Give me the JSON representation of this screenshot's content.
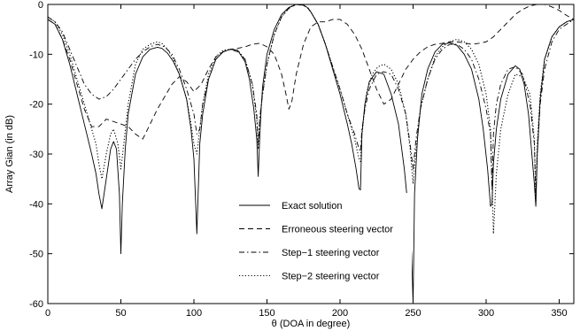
{
  "chart_data": {
    "type": "line",
    "title": "",
    "xlabel": "θ  (DOA in degree)",
    "ylabel": "Array Gian (in dB)",
    "xlim": [
      0,
      360
    ],
    "ylim": [
      -60,
      0
    ],
    "xticks": [
      0,
      50,
      100,
      150,
      200,
      250,
      300,
      350
    ],
    "yticks": [
      0,
      -10,
      -20,
      -30,
      -40,
      -50,
      -60
    ],
    "grid": false,
    "legend_position": "lower-center",
    "series": [
      {
        "name": "Exact solution",
        "style": "solid",
        "x": [
          0,
          5,
          10,
          15,
          20,
          25,
          30,
          33,
          35,
          37,
          40,
          43,
          45,
          47,
          49,
          50,
          51,
          53,
          55,
          60,
          65,
          70,
          75,
          78,
          82,
          86,
          90,
          95,
          98,
          100,
          102,
          104,
          106,
          110,
          115,
          120,
          125,
          130,
          135,
          138,
          141,
          143,
          144,
          145,
          146,
          147,
          150,
          155,
          160,
          165,
          170,
          175,
          178,
          180,
          185,
          190,
          195,
          200,
          205,
          208,
          211,
          213,
          214,
          215,
          217,
          220,
          225,
          230,
          235,
          240,
          244,
          247,
          249,
          250,
          251,
          253,
          256,
          260,
          265,
          270,
          275,
          280,
          285,
          290,
          295,
          298,
          301,
          303,
          304,
          305,
          307,
          310,
          315,
          320,
          323,
          326,
          329,
          331,
          333,
          334,
          335,
          337,
          340,
          345,
          350,
          355,
          360
        ],
        "y": [
          -3,
          -4,
          -7,
          -12,
          -18,
          -24,
          -30,
          -34,
          -38,
          -41,
          -35,
          -29,
          -27.5,
          -29,
          -38,
          -50,
          -40,
          -29,
          -22,
          -14,
          -10.5,
          -9,
          -8.6,
          -8.8,
          -9.8,
          -11.5,
          -14,
          -19,
          -25,
          -31,
          -46,
          -28,
          -22,
          -15,
          -11,
          -9.5,
          -9,
          -9.2,
          -11.5,
          -15,
          -21,
          -27,
          -34.5,
          -27,
          -21,
          -16.5,
          -10,
          -5,
          -2,
          -0.6,
          0,
          -0.1,
          -0.7,
          -1.5,
          -4,
          -8,
          -13,
          -18,
          -24,
          -28,
          -33,
          -37,
          -37.2,
          -26,
          -20,
          -15.5,
          -13.5,
          -14,
          -18,
          -24,
          -33,
          -42,
          -50,
          -60,
          -38,
          -27,
          -18,
          -13,
          -9.5,
          -8,
          -7.7,
          -8.2,
          -10,
          -13,
          -19,
          -25,
          -33,
          -40.5,
          -40,
          -32,
          -25,
          -19,
          -14,
          -12.3,
          -13,
          -16,
          -22,
          -29,
          -36,
          -40.5,
          -30,
          -19,
          -11,
          -6.5,
          -4.5,
          -3.5,
          -3
        ]
      },
      {
        "name": "Erroneous steering vector",
        "style": "dashed",
        "x": [
          0,
          5,
          10,
          15,
          20,
          25,
          30,
          35,
          40,
          45,
          50,
          55,
          60,
          65,
          70,
          75,
          80,
          85,
          90,
          95,
          100,
          105,
          110,
          115,
          120,
          125,
          130,
          135,
          140,
          145,
          150,
          155,
          160,
          163,
          165,
          167,
          170,
          175,
          180,
          185,
          190,
          195,
          200,
          205,
          210,
          215,
          220,
          225,
          230,
          235,
          240,
          245,
          250,
          255,
          260,
          265,
          270,
          275,
          280,
          285,
          290,
          295,
          300,
          305,
          310,
          315,
          320,
          325,
          330,
          335,
          340,
          345,
          350,
          355,
          360
        ],
        "y": [
          -3,
          -4,
          -7,
          -11,
          -16,
          -21,
          -24.5,
          -24.5,
          -23,
          -23.5,
          -24,
          -24.5,
          -26,
          -27,
          -24,
          -21,
          -18.5,
          -16,
          -14.5,
          -15.5,
          -17.5,
          -16,
          -13,
          -10.5,
          -9.5,
          -9,
          -8.8,
          -8.5,
          -8,
          -7.8,
          -8.5,
          -10,
          -14,
          -18,
          -21,
          -19.5,
          -14,
          -8,
          -4.5,
          -3.5,
          -3.5,
          -3,
          -3,
          -4,
          -6,
          -9,
          -13,
          -17,
          -20,
          -19,
          -16,
          -13,
          -11,
          -9.5,
          -8.5,
          -8,
          -7.8,
          -7.5,
          -7.5,
          -7.7,
          -8,
          -7.8,
          -7.5,
          -6.5,
          -5,
          -3.5,
          -2,
          -1,
          -0.3,
          0,
          0,
          -0.5,
          -1.2,
          -2.2,
          -3
        ]
      },
      {
        "name": "Step−1 steering vector",
        "style": "dashdot",
        "x": [
          0,
          5,
          10,
          15,
          20,
          25,
          30,
          35,
          40,
          45,
          50,
          55,
          60,
          65,
          70,
          75,
          80,
          85,
          90,
          95,
          100,
          102,
          104,
          106,
          110,
          115,
          120,
          125,
          130,
          135,
          140,
          143,
          144,
          145,
          147,
          150,
          155,
          160,
          165,
          170,
          175,
          178,
          180,
          185,
          190,
          195,
          200,
          205,
          210,
          213,
          214,
          215,
          217,
          220,
          225,
          230,
          235,
          240,
          245,
          248,
          250,
          252,
          255,
          260,
          265,
          270,
          275,
          280,
          285,
          290,
          295,
          300,
          303,
          304,
          305,
          307,
          310,
          315,
          320,
          325,
          330,
          333,
          334,
          335,
          337,
          340,
          345,
          350,
          355,
          360
        ],
        "y": [
          -2.5,
          -3.5,
          -5.5,
          -9,
          -12.5,
          -16,
          -18,
          -19,
          -18.5,
          -17,
          -15,
          -13,
          -11,
          -9.5,
          -8.5,
          -8,
          -8.5,
          -10,
          -13,
          -17,
          -22,
          -26,
          -25,
          -20,
          -15,
          -11,
          -9.5,
          -9,
          -9.5,
          -11,
          -16,
          -22,
          -28,
          -23,
          -18,
          -12,
          -6,
          -2.5,
          -0.8,
          0,
          -0.2,
          -0.8,
          -1.5,
          -4,
          -8,
          -12.5,
          -17,
          -22,
          -26,
          -29,
          -29.5,
          -25,
          -21,
          -17,
          -14,
          -13.5,
          -14,
          -17,
          -22,
          -28,
          -33,
          -27,
          -21,
          -15,
          -11,
          -9,
          -8,
          -8,
          -9,
          -11,
          -15,
          -21,
          -26,
          -37,
          -26,
          -20,
          -16,
          -13,
          -12.5,
          -14,
          -20,
          -28,
          -38,
          -30,
          -20,
          -13,
          -7.5,
          -5,
          -4,
          -3
        ]
      },
      {
        "name": "Step−2 steering vector",
        "style": "dotted",
        "x": [
          0,
          5,
          10,
          15,
          20,
          25,
          30,
          33,
          35,
          37,
          40,
          43,
          45,
          48,
          50,
          52,
          55,
          60,
          65,
          70,
          75,
          78,
          82,
          86,
          90,
          95,
          98,
          100,
          102,
          104,
          106,
          110,
          115,
          120,
          125,
          130,
          135,
          140,
          143,
          144,
          145,
          147,
          150,
          155,
          160,
          165,
          170,
          175,
          178,
          180,
          185,
          190,
          195,
          200,
          205,
          210,
          213,
          214,
          215,
          218,
          222,
          226,
          230,
          235,
          240,
          245,
          248,
          250,
          252,
          255,
          260,
          265,
          270,
          275,
          280,
          285,
          290,
          295,
          300,
          303,
          304,
          305,
          307,
          310,
          315,
          320,
          325,
          330,
          333,
          334,
          335,
          337,
          340,
          345,
          350,
          355,
          360
        ],
        "y": [
          -2.5,
          -3.5,
          -6,
          -10,
          -15,
          -20,
          -25,
          -28,
          -32,
          -35,
          -30,
          -26,
          -25,
          -28,
          -33,
          -28,
          -20,
          -12,
          -9,
          -8,
          -7.5,
          -7.8,
          -9,
          -11,
          -14,
          -19,
          -24,
          -28,
          -30,
          -25,
          -20,
          -14,
          -10.5,
          -9.2,
          -9,
          -9.2,
          -11,
          -16,
          -23,
          -29,
          -23,
          -18,
          -12,
          -6,
          -2.5,
          -0.7,
          0,
          -0.2,
          -0.7,
          -1.5,
          -4,
          -8,
          -12.5,
          -17,
          -22,
          -27,
          -31,
          -31.5,
          -26,
          -18,
          -14,
          -12.5,
          -12,
          -13,
          -16,
          -22,
          -29,
          -36,
          -29,
          -21,
          -15,
          -10.5,
          -8.5,
          -7.5,
          -7,
          -7.5,
          -9,
          -12,
          -18,
          -25,
          -35,
          -46,
          -34,
          -25,
          -18,
          -14,
          -14.5,
          -18,
          -27,
          -40,
          -28,
          -18,
          -11,
          -6.5,
          -4.5,
          -3.5,
          -3
        ]
      }
    ]
  }
}
